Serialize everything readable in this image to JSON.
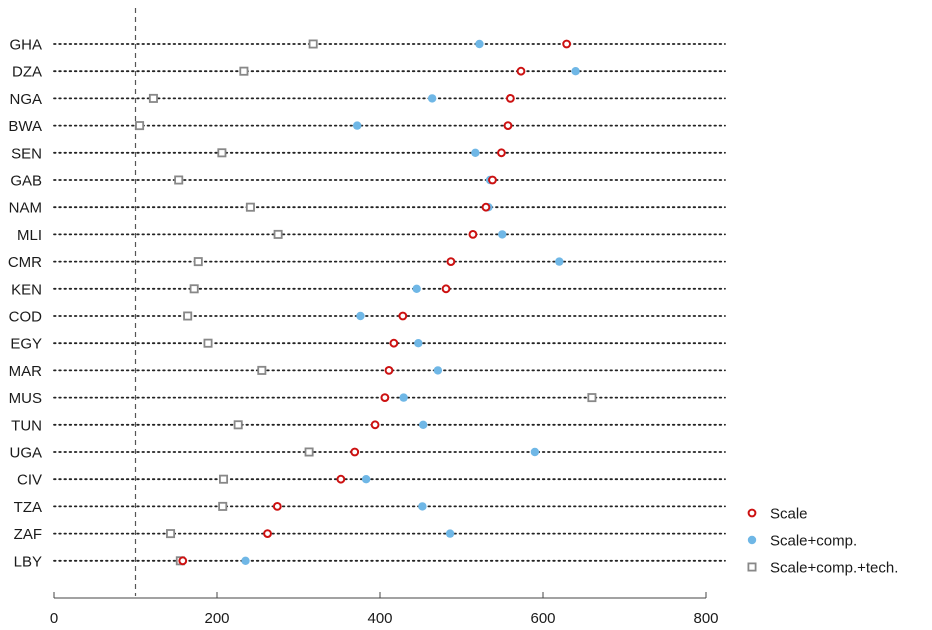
{
  "chart_data": {
    "type": "scatter",
    "orientation": "horizontal-dot-plot",
    "title": "",
    "xlabel": "",
    "ylabel": "",
    "xlim": [
      0,
      800
    ],
    "x_ticks": [
      0,
      200,
      400,
      600,
      800
    ],
    "reference_line_x": 100,
    "legend_position": "bottom-right",
    "categories": [
      "GHA",
      "DZA",
      "NGA",
      "BWA",
      "SEN",
      "GAB",
      "NAM",
      "MLI",
      "CMR",
      "KEN",
      "COD",
      "EGY",
      "MAR",
      "MUS",
      "TUN",
      "UGA",
      "CIV",
      "TZA",
      "ZAF",
      "LBY"
    ],
    "series": [
      {
        "name": "Scale",
        "marker": "open-circle",
        "color": "#cc1111",
        "values": [
          629,
          573,
          560,
          557,
          549,
          538,
          530,
          514,
          487,
          481,
          428,
          417,
          411,
          406,
          394,
          369,
          352,
          274,
          262,
          158
        ]
      },
      {
        "name": "Scale+comp.",
        "marker": "filled-circle",
        "color": "#6fb7e6",
        "values": [
          522,
          640,
          464,
          372,
          517,
          535,
          533,
          550,
          620,
          445,
          376,
          447,
          471,
          429,
          453,
          590,
          383,
          452,
          486,
          235
        ]
      },
      {
        "name": "Scale+comp.+tech.",
        "marker": "open-square",
        "color": "#888888",
        "values": [
          318,
          233,
          122,
          105,
          206,
          153,
          241,
          275,
          177,
          172,
          164,
          189,
          255,
          660,
          226,
          313,
          208,
          207,
          143,
          155
        ]
      }
    ]
  }
}
